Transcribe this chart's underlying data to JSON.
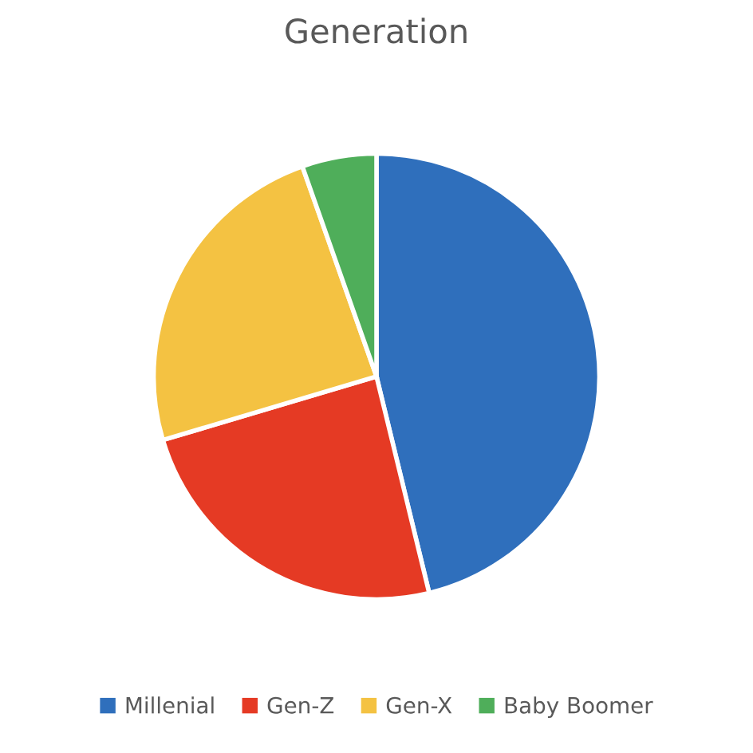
{
  "chart_data": {
    "type": "pie",
    "title": "Generation",
    "categories": [
      "Millenial",
      "Gen-Z",
      "Gen-X",
      "Baby Boomer"
    ],
    "values": [
      46.2,
      24.2,
      24.2,
      5.4
    ],
    "colors": [
      "#2f6fbc",
      "#e53a24",
      "#f4c242",
      "#4fae5a"
    ],
    "legend": "bottom"
  }
}
